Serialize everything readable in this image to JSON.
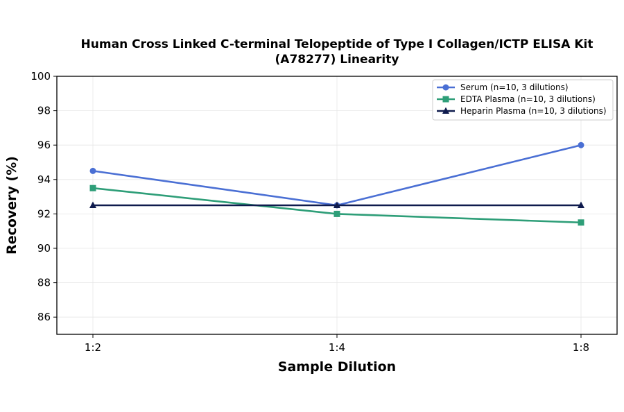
{
  "chart_data": {
    "type": "line",
    "title_line1": "Human Cross Linked C-terminal Telopeptide of Type I Collagen/ICTP ELISA Kit",
    "title_line2": "(A78277) Linearity",
    "xlabel": "Sample Dilution",
    "ylabel": "Recovery (%)",
    "categories": [
      "1:2",
      "1:4",
      "1:8"
    ],
    "ylim": [
      85,
      100
    ],
    "yticks": [
      86,
      88,
      90,
      92,
      94,
      96,
      98,
      100
    ],
    "grid": true,
    "legend_position": "top-right",
    "series": [
      {
        "name": "Serum (n=10, 3 dilutions)",
        "values": [
          94.5,
          92.5,
          96.0
        ],
        "color": "#4a6fd4",
        "marker": "circle"
      },
      {
        "name": "EDTA Plasma (n=10, 3 dilutions)",
        "values": [
          93.5,
          92.0,
          91.5
        ],
        "color": "#2e9e78",
        "marker": "square"
      },
      {
        "name": "Heparin Plasma (n=10, 3 dilutions)",
        "values": [
          92.5,
          92.5,
          92.5
        ],
        "color": "#0f1b4d",
        "marker": "triangle"
      }
    ]
  }
}
